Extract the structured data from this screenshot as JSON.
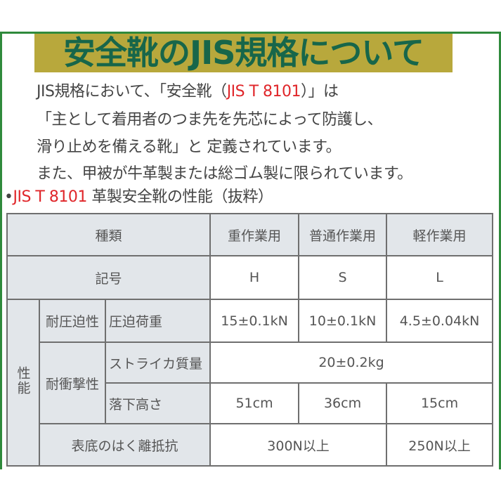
{
  "title": "安全靴のJIS規格について",
  "intro": {
    "line1_a": "JIS規格において、「安全靴（",
    "line1_red": "JIS T 8101",
    "line1_b": "）」は",
    "line2": "「主として着用者のつま先を先芯によって防護し、",
    "line3": "滑り止めを備える靴」と 定義されています。",
    "line4": "また、甲被が牛革製または総ゴム製に限られています。"
  },
  "subheading": {
    "bullet": "•",
    "red": "JIS T 8101",
    "text": " 革製安全靴の性能（抜粋）"
  },
  "table": {
    "header": {
      "type": "種類",
      "heavy": "重作業用",
      "normal": "普通作業用",
      "light": "軽作業用"
    },
    "symbol": {
      "label": "記号",
      "heavy": "H",
      "normal": "S",
      "light": "L"
    },
    "performance_label": "性能",
    "compression": {
      "group": "耐圧迫性",
      "label": "圧迫荷重",
      "heavy": "15±0.1kN",
      "normal": "10±0.1kN",
      "light": "4.5±0.04kN"
    },
    "impact": {
      "group": "耐衝撃性",
      "striker_label": "ストライカ質量",
      "striker_value": "20±0.2kg",
      "drop_label": "落下高さ",
      "heavy": "51cm",
      "normal": "36cm",
      "light": "15cm"
    },
    "peel": {
      "label": "表底のはく離抵抗",
      "heavy_normal": "300N以上",
      "light": "250N以上"
    }
  },
  "colors": {
    "border": "#2f8a3c",
    "title_bg": "#b8a83c",
    "title_text": "#17664a",
    "accent_red": "#e0262a",
    "header_gray": "#e2e6ea"
  }
}
